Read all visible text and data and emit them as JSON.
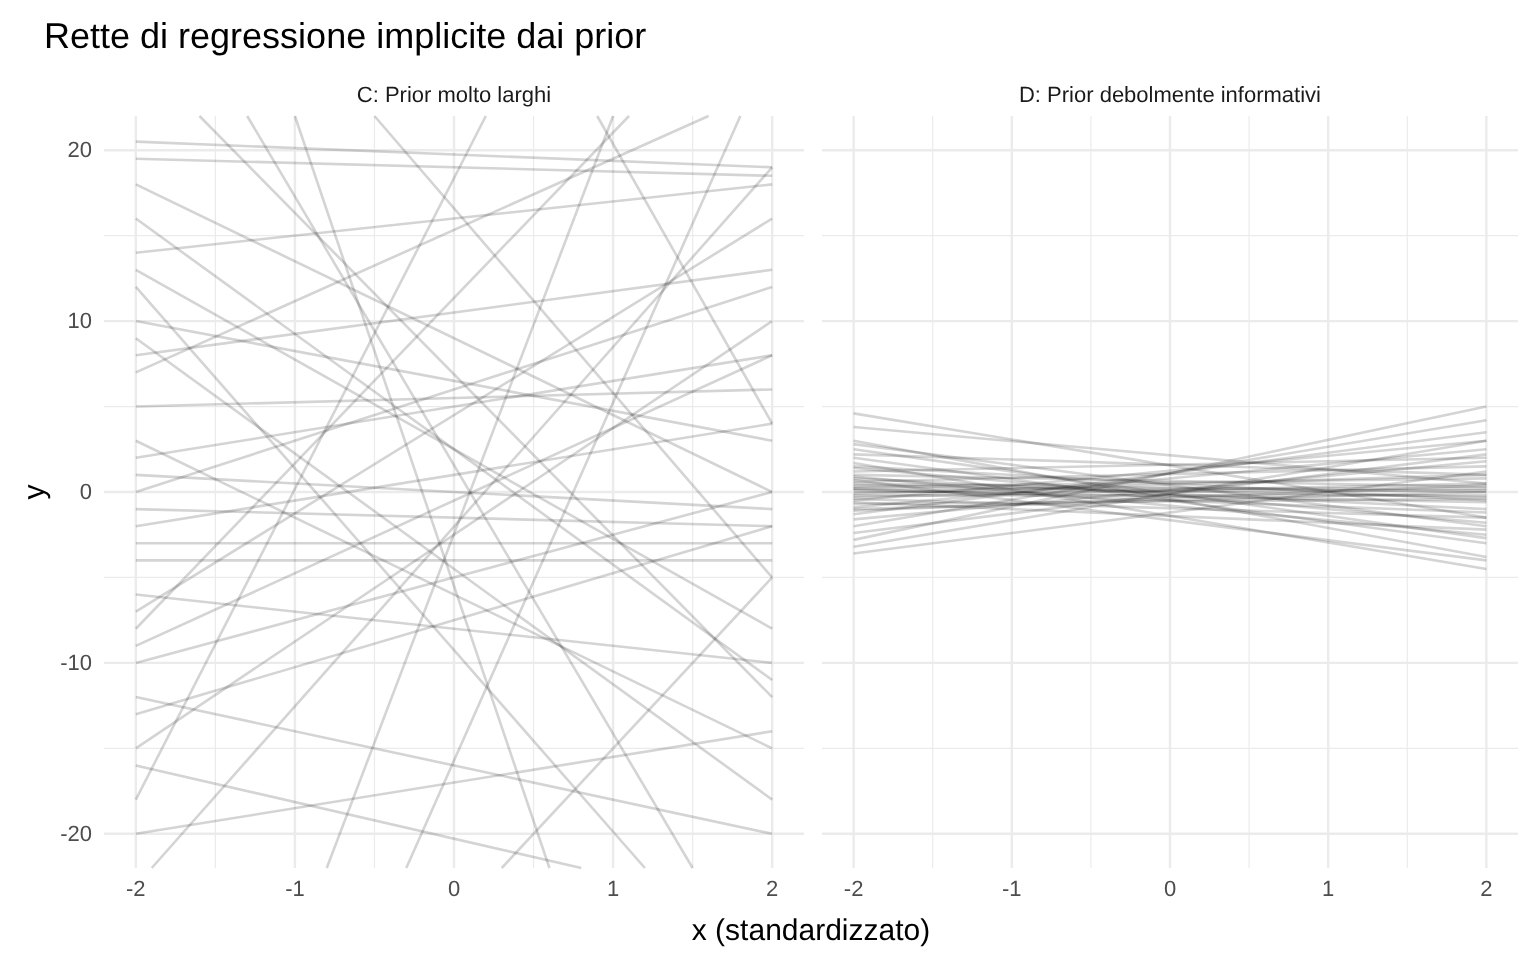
{
  "chart_data": [
    {
      "type": "line",
      "title": "Rette di regressione implicite dai prior",
      "subtitle": "C: Prior molto larghi",
      "xlabel": "x (standardizzato)",
      "ylabel": "y",
      "xlim": [
        -2.2,
        2.2
      ],
      "ylim": [
        -22,
        22
      ],
      "xticks": [
        -2,
        {
          "value": -1.5,
          "label": null
        },
        -1,
        {
          "value": -0.5,
          "label": null
        },
        0,
        {
          "value": 0.5,
          "label": null
        },
        1,
        {
          "value": 1.5,
          "label": null
        },
        2
      ],
      "yticks": [
        -20,
        {
          "value": -15,
          "label": null
        },
        -10,
        {
          "value": -5,
          "label": null
        },
        0,
        {
          "value": 5,
          "label": null
        },
        10,
        {
          "value": 15,
          "label": null
        },
        20
      ],
      "grid": true,
      "series": [
        {
          "color": "#d4d4d4",
          "x": [
            -2,
            2
          ],
          "values": [
            20.5,
            19
          ]
        },
        {
          "color": "#d4d4d4",
          "x": [
            -2,
            2
          ],
          "values": [
            19.5,
            18.5
          ]
        },
        {
          "color": "#d4d4d4",
          "x": [
            -2,
            2
          ],
          "values": [
            14,
            18
          ]
        },
        {
          "color": "#d4d4d4",
          "x": [
            -2,
            2
          ],
          "values": [
            8,
            13
          ]
        },
        {
          "color": "#d4d4d4",
          "x": [
            -2,
            2
          ],
          "values": [
            -4,
            -4
          ]
        },
        {
          "color": "#d4d4d4",
          "x": [
            -2,
            2
          ],
          "values": [
            -1,
            -2
          ]
        },
        {
          "color": "#d4d4d4",
          "x": [
            -2,
            2
          ],
          "values": [
            -10,
            0
          ]
        },
        {
          "color": "#d4d4d4",
          "x": [
            -1.6,
            2
          ],
          "values": [
            22,
            -12
          ]
        },
        {
          "color": "#d4d4d4",
          "x": [
            -1,
            0.6
          ],
          "values": [
            22,
            -22
          ]
        },
        {
          "color": "#d4d4d4",
          "x": [
            -2,
            1.2
          ],
          "values": [
            12,
            -22
          ]
        },
        {
          "color": "#d4d4d4",
          "x": [
            -0.5,
            2
          ],
          "values": [
            22,
            -5
          ]
        },
        {
          "color": "#d4d4d4",
          "x": [
            -2,
            1.1
          ],
          "values": [
            -8,
            22
          ]
        },
        {
          "color": "#d4d4d4",
          "x": [
            -0.3,
            1.8
          ],
          "values": [
            -22,
            22
          ]
        },
        {
          "color": "#d4d4d4",
          "x": [
            -2,
            2
          ],
          "values": [
            -15,
            10
          ]
        },
        {
          "color": "#d4d4d4",
          "x": [
            -2,
            2
          ],
          "values": [
            3,
            -15
          ]
        },
        {
          "color": "#d4d4d4",
          "x": [
            -2,
            0.2
          ],
          "values": [
            -18,
            22
          ]
        },
        {
          "color": "#d4d4d4",
          "x": [
            -2,
            2
          ],
          "values": [
            16,
            -11
          ]
        },
        {
          "color": "#d4d4d4",
          "x": [
            -2,
            2
          ],
          "values": [
            5,
            6
          ]
        },
        {
          "color": "#d4d4d4",
          "x": [
            -2,
            2
          ],
          "values": [
            -2,
            4
          ]
        },
        {
          "color": "#d4d4d4",
          "x": [
            -2,
            2
          ],
          "values": [
            -12,
            -20
          ]
        },
        {
          "color": "#d4d4d4",
          "x": [
            -2,
            2
          ],
          "values": [
            -6,
            -10
          ]
        },
        {
          "color": "#d4d4d4",
          "x": [
            -2,
            2
          ],
          "values": [
            10,
            3
          ]
        },
        {
          "color": "#d4d4d4",
          "x": [
            -2,
            2
          ],
          "values": [
            1,
            -1
          ]
        },
        {
          "color": "#d4d4d4",
          "x": [
            -2,
            2
          ],
          "values": [
            -20,
            -14
          ]
        },
        {
          "color": "#d4d4d4",
          "x": [
            0.3,
            2
          ],
          "values": [
            -22,
            -5
          ]
        },
        {
          "color": "#d4d4d4",
          "x": [
            -1.3,
            1.5
          ],
          "values": [
            22,
            -22
          ]
        },
        {
          "color": "#d4d4d4",
          "x": [
            -2,
            1.6
          ],
          "values": [
            7,
            22
          ]
        },
        {
          "color": "#d4d4d4",
          "x": [
            -2,
            2
          ],
          "values": [
            -9,
            8
          ]
        },
        {
          "color": "#d4d4d4",
          "x": [
            -2,
            2
          ],
          "values": [
            18,
            0
          ]
        },
        {
          "color": "#d4d4d4",
          "x": [
            -2,
            0.8
          ],
          "values": [
            -16,
            -22
          ]
        },
        {
          "color": "#d4d4d4",
          "x": [
            -2,
            2
          ],
          "values": [
            0,
            12
          ]
        },
        {
          "color": "#d4d4d4",
          "x": [
            -2,
            2
          ],
          "values": [
            -3,
            -3
          ]
        },
        {
          "color": "#d4d4d4",
          "x": [
            0.9,
            2
          ],
          "values": [
            22,
            4
          ]
        },
        {
          "color": "#d4d4d4",
          "x": [
            -2,
            2
          ],
          "values": [
            13,
            -8
          ]
        },
        {
          "color": "#d4d4d4",
          "x": [
            -2,
            2
          ],
          "values": [
            -7,
            16
          ]
        },
        {
          "color": "#d4d4d4",
          "x": [
            -2,
            2
          ],
          "values": [
            9,
            -18
          ]
        },
        {
          "color": "#d4d4d4",
          "x": [
            -0.8,
            1
          ],
          "values": [
            -22,
            22
          ]
        },
        {
          "color": "#d4d4d4",
          "x": [
            -2,
            2
          ],
          "values": [
            2,
            8
          ]
        },
        {
          "color": "#d4d4d4",
          "x": [
            -2,
            2
          ],
          "values": [
            -13,
            -2
          ]
        },
        {
          "color": "#d4d4d4",
          "x": [
            -1.9,
            2
          ],
          "values": [
            -22,
            19
          ]
        }
      ]
    },
    {
      "type": "line",
      "subtitle": "D: Prior debolmente informativi",
      "xlim": [
        -2.2,
        2.2
      ],
      "ylim": [
        -22,
        22
      ],
      "xticks": [
        -2,
        {
          "value": -1.5,
          "label": null
        },
        -1,
        {
          "value": -0.5,
          "label": null
        },
        0,
        {
          "value": 0.5,
          "label": null
        },
        1,
        {
          "value": 1.5,
          "label": null
        },
        2
      ],
      "yticks": [
        -20,
        {
          "value": -15,
          "label": null
        },
        -10,
        {
          "value": -5,
          "label": null
        },
        0,
        {
          "value": 5,
          "label": null
        },
        10,
        {
          "value": 15,
          "label": null
        },
        20
      ],
      "tick_labels": "x",
      "grid": true,
      "series": [
        {
          "color": "#d4d4d4",
          "x": [
            -2,
            2
          ],
          "values": [
            4.6,
            -1.5
          ]
        },
        {
          "color": "#d4d4d4",
          "x": [
            -2,
            2
          ],
          "values": [
            3.8,
            0.5
          ]
        },
        {
          "color": "#d4d4d4",
          "x": [
            -2,
            2
          ],
          "values": [
            2.8,
            -2
          ]
        },
        {
          "color": "#d4d4d4",
          "x": [
            -2,
            2
          ],
          "values": [
            2.2,
            1
          ]
        },
        {
          "color": "#d4d4d4",
          "x": [
            -2,
            2
          ],
          "values": [
            1.5,
            -0.5
          ]
        },
        {
          "color": "#d4d4d4",
          "x": [
            -2,
            2
          ],
          "values": [
            1.2,
            2
          ]
        },
        {
          "color": "#d4d4d4",
          "x": [
            -2,
            2
          ],
          "values": [
            1,
            0.3
          ]
        },
        {
          "color": "#d4d4d4",
          "x": [
            -2,
            2
          ],
          "values": [
            0.8,
            -1
          ]
        },
        {
          "color": "#d4d4d4",
          "x": [
            -2,
            2
          ],
          "values": [
            0.6,
            1.5
          ]
        },
        {
          "color": "#d4d4d4",
          "x": [
            -2,
            2
          ],
          "values": [
            0.5,
            0
          ]
        },
        {
          "color": "#d4d4d4",
          "x": [
            -2,
            2
          ],
          "values": [
            0.4,
            -0.3
          ]
        },
        {
          "color": "#d4d4d4",
          "x": [
            -2,
            2
          ],
          "values": [
            0.3,
            0.8
          ]
        },
        {
          "color": "#d4d4d4",
          "x": [
            -2,
            2
          ],
          "values": [
            0.2,
            0.2
          ]
        },
        {
          "color": "#d4d4d4",
          "x": [
            -2,
            2
          ],
          "values": [
            0.1,
            -0.6
          ]
        },
        {
          "color": "#d4d4d4",
          "x": [
            -2,
            2
          ],
          "values": [
            0,
            0.1
          ]
        },
        {
          "color": "#d4d4d4",
          "x": [
            -2,
            2
          ],
          "values": [
            -0.1,
            1
          ]
        },
        {
          "color": "#d4d4d4",
          "x": [
            -2,
            2
          ],
          "values": [
            -0.2,
            -0.2
          ]
        },
        {
          "color": "#d4d4d4",
          "x": [
            -2,
            2
          ],
          "values": [
            -0.3,
            0.5
          ]
        },
        {
          "color": "#d4d4d4",
          "x": [
            -2,
            2
          ],
          "values": [
            -0.4,
            -1.5
          ]
        },
        {
          "color": "#d4d4d4",
          "x": [
            -2,
            2
          ],
          "values": [
            -0.5,
            3
          ]
        },
        {
          "color": "#d4d4d4",
          "x": [
            -2,
            2
          ],
          "values": [
            -0.7,
            -0.4
          ]
        },
        {
          "color": "#d4d4d4",
          "x": [
            -2,
            2
          ],
          "values": [
            -0.9,
            2.5
          ]
        },
        {
          "color": "#d4d4d4",
          "x": [
            -2,
            2
          ],
          "values": [
            -1.1,
            0.4
          ]
        },
        {
          "color": "#d4d4d4",
          "x": [
            -2,
            2
          ],
          "values": [
            -1.3,
            3.5
          ]
        },
        {
          "color": "#d4d4d4",
          "x": [
            -2,
            2
          ],
          "values": [
            -1.6,
            1.8
          ]
        },
        {
          "color": "#d4d4d4",
          "x": [
            -2,
            2
          ],
          "values": [
            -2,
            4.2
          ]
        },
        {
          "color": "#d4d4d4",
          "x": [
            -2,
            2
          ],
          "values": [
            -2.4,
            2.2
          ]
        },
        {
          "color": "#d4d4d4",
          "x": [
            -2,
            2
          ],
          "values": [
            -2.8,
            5
          ]
        },
        {
          "color": "#d4d4d4",
          "x": [
            -2,
            2
          ],
          "values": [
            -3.2,
            3
          ]
        },
        {
          "color": "#d4d4d4",
          "x": [
            -2,
            2
          ],
          "values": [
            -3.6,
            1.2
          ]
        },
        {
          "color": "#d4d4d4",
          "x": [
            -2,
            2
          ],
          "values": [
            2,
            -3
          ]
        },
        {
          "color": "#d4d4d4",
          "x": [
            -2,
            2
          ],
          "values": [
            1.7,
            -4.5
          ]
        },
        {
          "color": "#d4d4d4",
          "x": [
            -2,
            2
          ],
          "values": [
            3,
            -3.8
          ]
        },
        {
          "color": "#d4d4d4",
          "x": [
            -2,
            2
          ],
          "values": [
            0.9,
            -2.5
          ]
        },
        {
          "color": "#d4d4d4",
          "x": [
            -2,
            2
          ],
          "values": [
            1.4,
            -1.8
          ]
        },
        {
          "color": "#d4d4d4",
          "x": [
            -2,
            2
          ],
          "values": [
            -0.6,
            -2.2
          ]
        },
        {
          "color": "#d4d4d4",
          "x": [
            -2,
            2
          ],
          "values": [
            0.7,
            -4
          ]
        },
        {
          "color": "#d4d4d4",
          "x": [
            -2,
            2
          ],
          "values": [
            2.5,
            -2.7
          ]
        },
        {
          "color": "#d4d4d4",
          "x": [
            -2,
            2
          ],
          "values": [
            -1,
            0
          ]
        },
        {
          "color": "#d4d4d4",
          "x": [
            -2,
            2
          ],
          "values": [
            0.2,
            -1.2
          ]
        }
      ]
    }
  ]
}
